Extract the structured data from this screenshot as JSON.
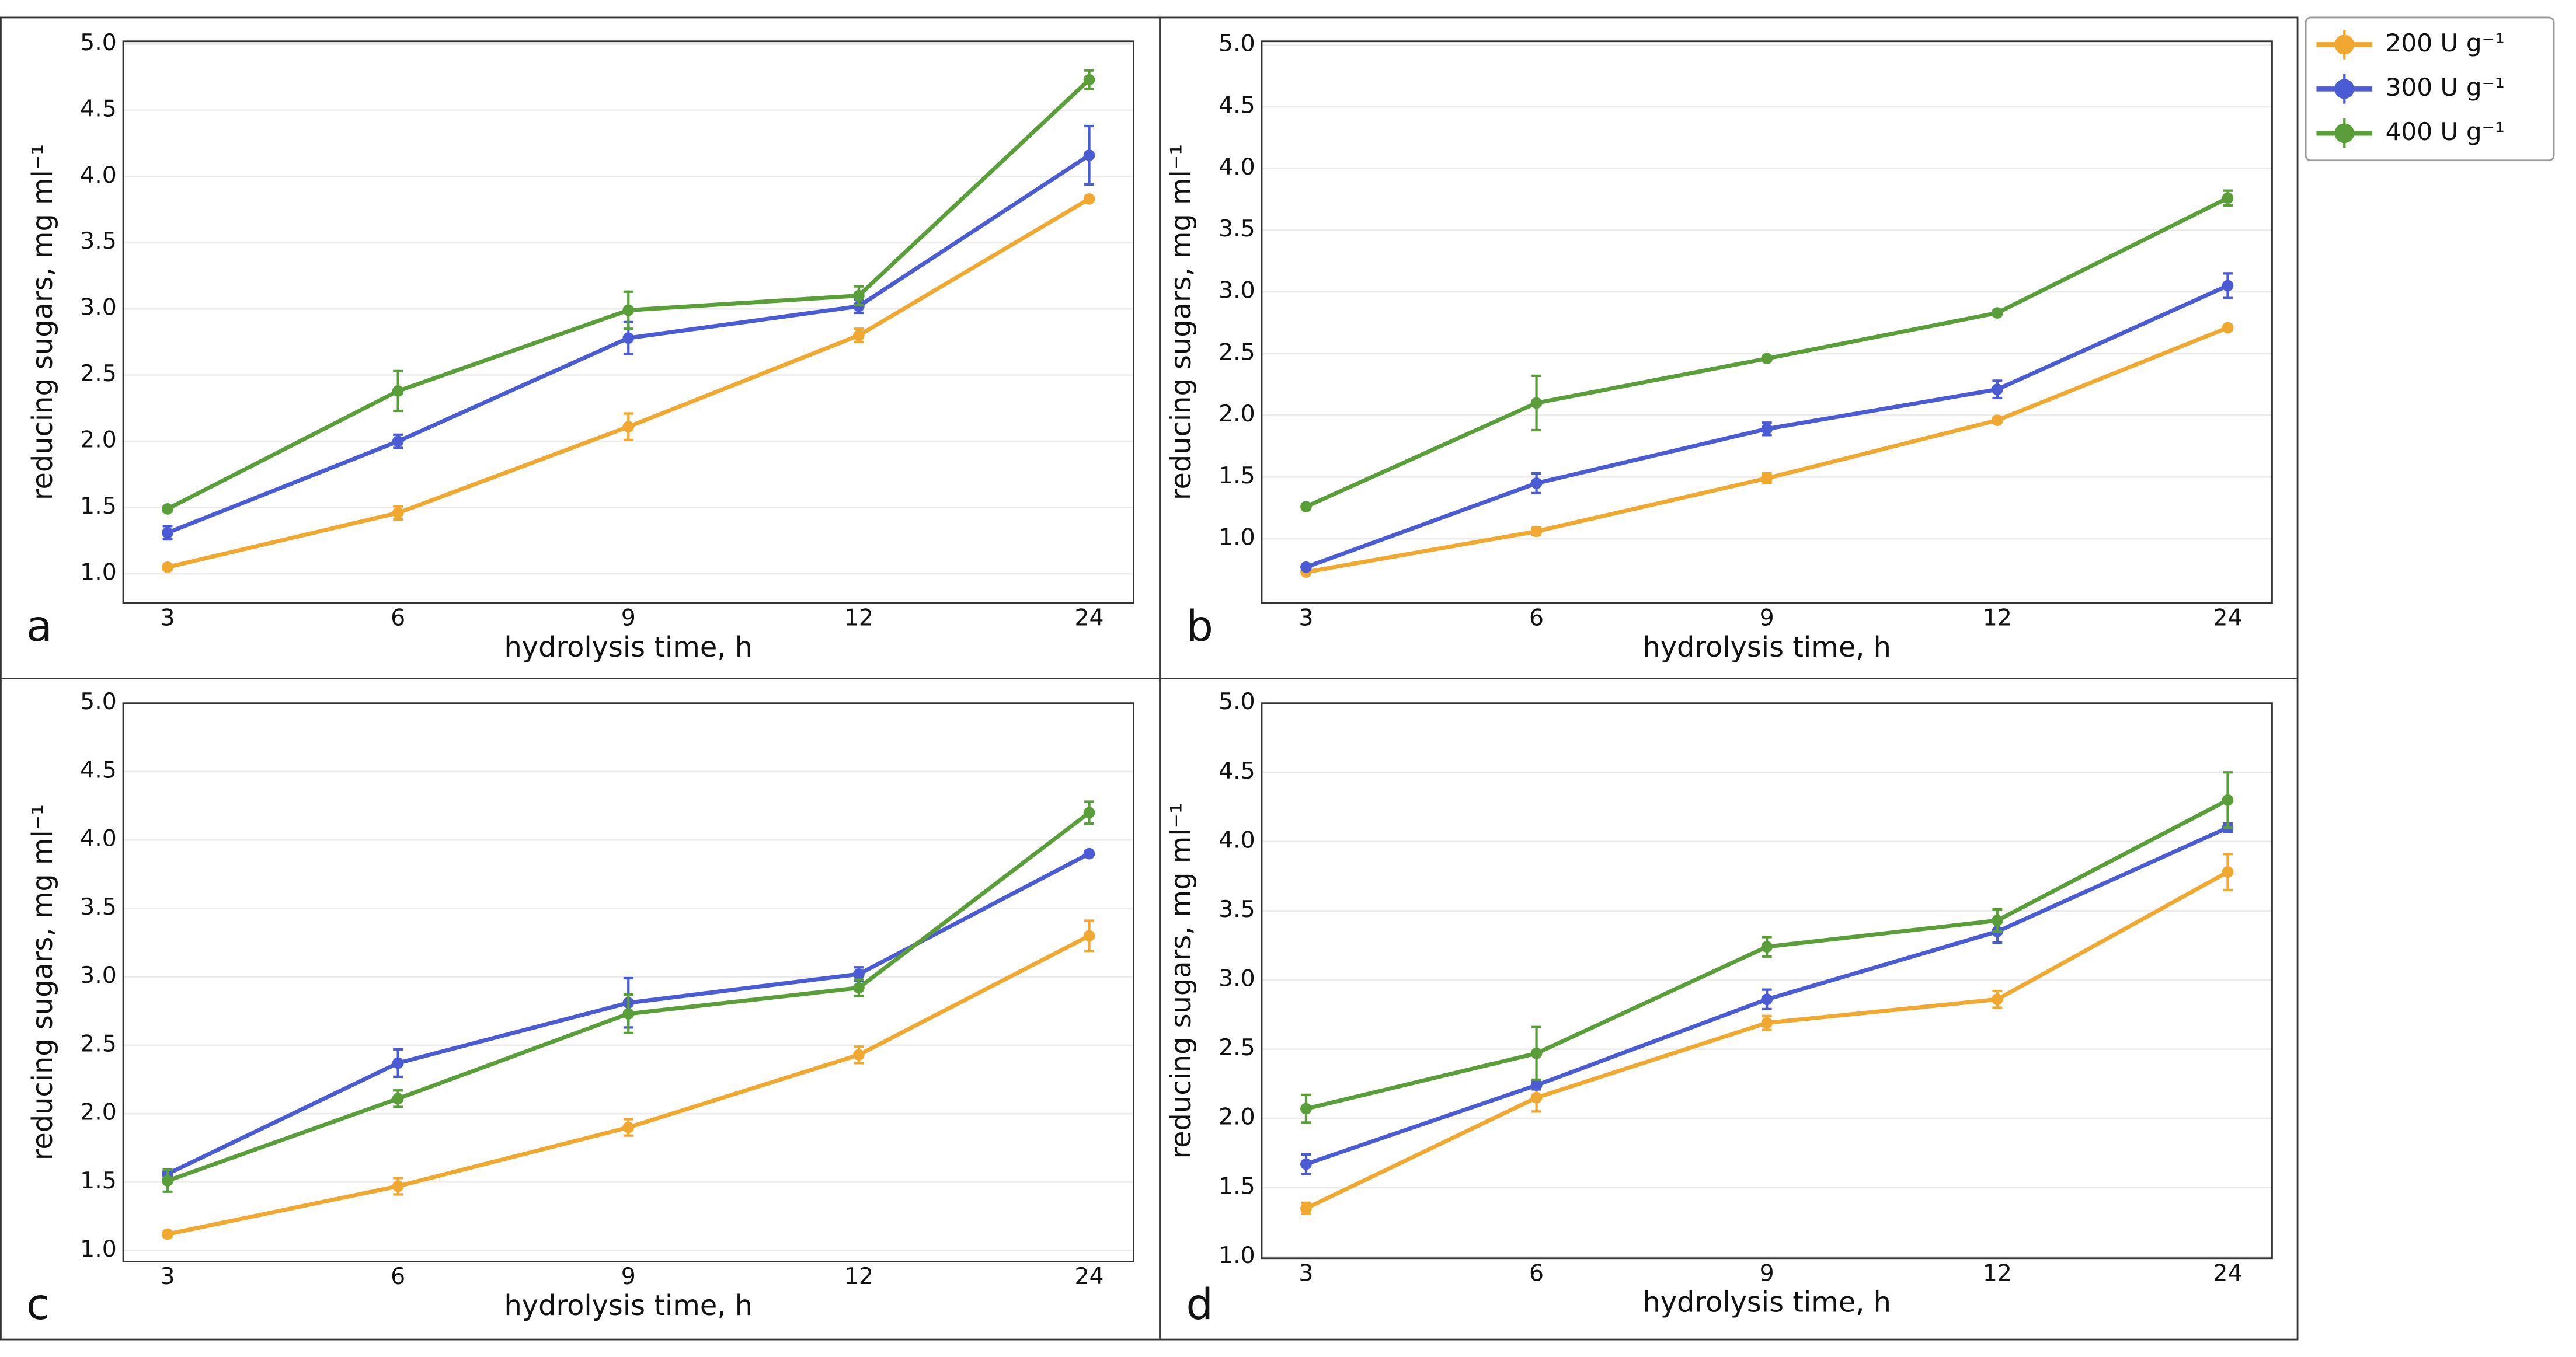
{
  "chart_data": [
    {
      "type": "line",
      "panel_label": "a",
      "x_label": "hydrolysis time, h",
      "y_label": "reducing sugars, mg ml⁻¹",
      "categories": [
        "3",
        "6",
        "9",
        "12",
        "24"
      ],
      "ylim": [
        0.78,
        5.02
      ],
      "yticks": [
        {
          "value": 1,
          "label": "1.0"
        },
        1.5,
        {
          "value": 2,
          "label": "2.0"
        },
        2.5,
        {
          "value": 3,
          "label": "3.0"
        },
        3.5,
        {
          "value": 4,
          "label": "4.0"
        },
        4.5,
        {
          "value": 5,
          "label": "5.0"
        }
      ],
      "grid": true,
      "series": [
        {
          "name": "200 U g⁻¹",
          "color": "#f0a830",
          "values": [
            1.05,
            1.46,
            2.11,
            2.8,
            3.83
          ],
          "errors": [
            0.02,
            0.05,
            0.1,
            0.05,
            0.02
          ]
        },
        {
          "name": "300 U g⁻¹",
          "color": "#4a5bd4",
          "values": [
            1.31,
            2.0,
            2.78,
            3.02,
            4.16
          ],
          "errors": [
            0.05,
            0.05,
            0.12,
            0.05,
            0.22
          ]
        },
        {
          "name": "400 U g⁻¹",
          "color": "#5a9e3a",
          "values": [
            1.49,
            2.38,
            2.99,
            3.1,
            4.73
          ],
          "errors": [
            0.02,
            0.15,
            0.14,
            0.07,
            0.07
          ]
        }
      ]
    },
    {
      "type": "line",
      "panel_label": "b",
      "x_label": "hydrolysis time, h",
      "y_label": "reducing sugars, mg ml⁻¹",
      "categories": [
        "3",
        "6",
        "9",
        "12",
        "24"
      ],
      "ylim": [
        0.48,
        5.03
      ],
      "yticks": [
        {
          "value": 1,
          "label": "1.0"
        },
        1.5,
        {
          "value": 2,
          "label": "2.0"
        },
        2.5,
        {
          "value": 3,
          "label": "3.0"
        },
        3.5,
        {
          "value": 4,
          "label": "4.0"
        },
        4.5,
        {
          "value": 5,
          "label": "5.0"
        }
      ],
      "grid": true,
      "series": [
        {
          "color": "#f0a830",
          "values": [
            0.73,
            1.06,
            1.49,
            1.96,
            2.71
          ],
          "errors": [
            0.02,
            0.03,
            0.04,
            0.02,
            0.02
          ]
        },
        {
          "color": "#4a5bd4",
          "values": [
            0.77,
            1.45,
            1.89,
            2.21,
            3.05
          ],
          "errors": [
            0.02,
            0.08,
            0.05,
            0.07,
            0.1
          ]
        },
        {
          "color": "#5a9e3a",
          "values": [
            1.26,
            2.1,
            2.46,
            2.83,
            3.76
          ],
          "errors": [
            0.02,
            0.22,
            0.02,
            0.02,
            0.06
          ]
        }
      ]
    },
    {
      "type": "line",
      "panel_label": "c",
      "x_label": "hydrolysis time, h",
      "y_label": "reducing sugars, mg ml⁻¹",
      "categories": [
        "3",
        "6",
        "9",
        "12",
        "24"
      ],
      "ylim": [
        0.92,
        5.0
      ],
      "yticks": [
        {
          "value": 1,
          "label": "1.0"
        },
        1.5,
        {
          "value": 2,
          "label": "2.0"
        },
        2.5,
        {
          "value": 3,
          "label": "3.0"
        },
        3.5,
        {
          "value": 4,
          "label": "4.0"
        },
        4.5,
        {
          "value": 5,
          "label": "5.0"
        }
      ],
      "grid": true,
      "series": [
        {
          "color": "#f0a830",
          "values": [
            1.12,
            1.47,
            1.9,
            2.43,
            3.3
          ],
          "errors": [
            0.02,
            0.06,
            0.06,
            0.06,
            0.11
          ]
        },
        {
          "color": "#4a5bd4",
          "values": [
            1.56,
            2.37,
            2.81,
            3.02,
            3.9
          ],
          "errors": [
            0.03,
            0.1,
            0.18,
            0.05,
            0.02
          ]
        },
        {
          "color": "#5a9e3a",
          "values": [
            1.51,
            2.11,
            2.73,
            2.92,
            4.2
          ],
          "errors": [
            0.08,
            0.06,
            0.14,
            0.06,
            0.08
          ]
        }
      ]
    },
    {
      "type": "line",
      "panel_label": "d",
      "x_label": "hydrolysis time, h",
      "y_label": "reducing sugars, mg ml⁻¹",
      "categories": [
        "3",
        "6",
        "9",
        "12",
        "24"
      ],
      "ylim": [
        0.99,
        5.0
      ],
      "yticks": [
        {
          "value": 1,
          "label": "1.0"
        },
        1.5,
        {
          "value": 2,
          "label": "2.0"
        },
        2.5,
        {
          "value": 3,
          "label": "3.0"
        },
        3.5,
        {
          "value": 4,
          "label": "4.0"
        },
        4.5,
        {
          "value": 5,
          "label": "5.0"
        }
      ],
      "grid": true,
      "series": [
        {
          "color": "#f0a830",
          "values": [
            1.35,
            2.15,
            2.69,
            2.86,
            3.78
          ],
          "errors": [
            0.04,
            0.1,
            0.05,
            0.06,
            0.13
          ]
        },
        {
          "color": "#4a5bd4",
          "values": [
            1.67,
            2.24,
            2.86,
            3.35,
            4.1
          ],
          "errors": [
            0.07,
            0.03,
            0.07,
            0.08,
            0.03
          ]
        },
        {
          "color": "#5a9e3a",
          "values": [
            2.07,
            2.47,
            3.24,
            3.43,
            4.3
          ],
          "errors": [
            0.1,
            0.19,
            0.07,
            0.08,
            0.2
          ]
        }
      ]
    }
  ]
}
